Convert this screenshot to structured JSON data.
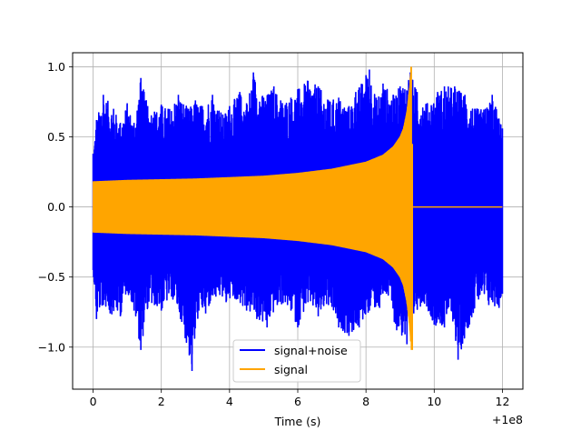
{
  "chart_data": {
    "type": "line",
    "title": "",
    "xlabel": "Time (s)",
    "ylabel": "",
    "x_offset_label": "+1e8",
    "xlim": [
      -0.6,
      12.6
    ],
    "ylim": [
      -1.3,
      1.1
    ],
    "x_ticks": [
      0,
      2,
      4,
      6,
      8,
      10,
      12
    ],
    "x_tick_labels": [
      "0",
      "2",
      "4",
      "6",
      "8",
      "10",
      "12"
    ],
    "y_ticks": [
      1.0,
      0.5,
      0.0,
      -0.5,
      -1.0
    ],
    "y_tick_labels": [
      "1.0",
      "0.5",
      "0.0",
      "−0.5",
      "−1.0"
    ],
    "grid": true,
    "legend_position": "bottom-center",
    "series": [
      {
        "name": "signal+noise",
        "color": "#0000ff",
        "x_range": [
          0,
          12
        ],
        "upper_envelope": [
          [
            0,
            0.38
          ],
          [
            0.1,
            0.62
          ],
          [
            0.3,
            0.8
          ],
          [
            0.6,
            0.7
          ],
          [
            0.8,
            0.6
          ],
          [
            1.0,
            0.74
          ],
          [
            1.2,
            0.6
          ],
          [
            1.4,
            0.92
          ],
          [
            1.6,
            0.72
          ],
          [
            1.8,
            0.68
          ],
          [
            2.0,
            0.73
          ],
          [
            2.2,
            0.7
          ],
          [
            2.5,
            0.8
          ],
          [
            2.8,
            0.7
          ],
          [
            3.0,
            0.76
          ],
          [
            3.2,
            0.72
          ],
          [
            3.5,
            0.8
          ],
          [
            3.8,
            0.66
          ],
          [
            4.0,
            0.72
          ],
          [
            4.3,
            0.82
          ],
          [
            4.5,
            0.74
          ],
          [
            4.7,
            0.96
          ],
          [
            5.0,
            0.78
          ],
          [
            5.3,
            0.86
          ],
          [
            5.5,
            0.76
          ],
          [
            5.8,
            0.78
          ],
          [
            6.0,
            0.84
          ],
          [
            6.3,
            0.9
          ],
          [
            6.6,
            0.86
          ],
          [
            6.9,
            0.76
          ],
          [
            7.2,
            0.78
          ],
          [
            7.5,
            0.72
          ],
          [
            7.7,
            0.82
          ],
          [
            8.0,
            0.94
          ],
          [
            8.1,
            0.98
          ],
          [
            8.3,
            0.78
          ],
          [
            8.5,
            0.88
          ],
          [
            8.8,
            0.8
          ],
          [
            9.0,
            0.86
          ],
          [
            9.3,
            0.96
          ],
          [
            9.5,
            0.82
          ],
          [
            9.8,
            0.74
          ],
          [
            10.1,
            0.82
          ],
          [
            10.3,
            0.86
          ],
          [
            10.6,
            0.86
          ],
          [
            10.9,
            0.8
          ],
          [
            11.2,
            0.7
          ],
          [
            11.5,
            0.7
          ],
          [
            11.7,
            0.8
          ],
          [
            12.0,
            0.56
          ]
        ],
        "lower_envelope": [
          [
            0,
            -0.45
          ],
          [
            0.1,
            -0.8
          ],
          [
            0.3,
            -0.7
          ],
          [
            0.5,
            -0.76
          ],
          [
            0.8,
            -0.78
          ],
          [
            1.0,
            -0.6
          ],
          [
            1.2,
            -0.74
          ],
          [
            1.4,
            -1.02
          ],
          [
            1.6,
            -0.72
          ],
          [
            1.8,
            -0.7
          ],
          [
            2.0,
            -0.74
          ],
          [
            2.3,
            -0.64
          ],
          [
            2.6,
            -0.82
          ],
          [
            2.9,
            -1.17
          ],
          [
            3.1,
            -0.74
          ],
          [
            3.3,
            -0.76
          ],
          [
            3.6,
            -0.64
          ],
          [
            3.9,
            -0.68
          ],
          [
            4.2,
            -0.66
          ],
          [
            4.5,
            -0.74
          ],
          [
            4.8,
            -0.8
          ],
          [
            5.1,
            -0.86
          ],
          [
            5.4,
            -0.7
          ],
          [
            5.7,
            -0.7
          ],
          [
            6.0,
            -0.86
          ],
          [
            6.3,
            -0.68
          ],
          [
            6.6,
            -0.78
          ],
          [
            6.9,
            -0.7
          ],
          [
            7.2,
            -0.86
          ],
          [
            7.5,
            -0.92
          ],
          [
            7.8,
            -0.86
          ],
          [
            8.1,
            -0.74
          ],
          [
            8.4,
            -0.72
          ],
          [
            8.6,
            -0.62
          ],
          [
            8.9,
            -0.88
          ],
          [
            9.2,
            -0.98
          ],
          [
            9.4,
            -0.76
          ],
          [
            9.7,
            -0.68
          ],
          [
            10.0,
            -0.84
          ],
          [
            10.3,
            -0.86
          ],
          [
            10.5,
            -0.74
          ],
          [
            10.7,
            -1.09
          ],
          [
            11.0,
            -0.86
          ],
          [
            11.3,
            -0.66
          ],
          [
            11.6,
            -0.7
          ],
          [
            11.9,
            -0.72
          ],
          [
            12.0,
            -0.62
          ]
        ]
      },
      {
        "name": "signal",
        "color": "#ffa500",
        "x_range": [
          0,
          12
        ],
        "envelope": [
          [
            0,
            0.18
          ],
          [
            1,
            0.19
          ],
          [
            2,
            0.195
          ],
          [
            3,
            0.2
          ],
          [
            4,
            0.21
          ],
          [
            5,
            0.22
          ],
          [
            6,
            0.24
          ],
          [
            7,
            0.27
          ],
          [
            8,
            0.32
          ],
          [
            8.5,
            0.37
          ],
          [
            8.8,
            0.43
          ],
          [
            9.0,
            0.5
          ],
          [
            9.1,
            0.56
          ],
          [
            9.2,
            0.68
          ],
          [
            9.28,
            0.85
          ],
          [
            9.32,
            1.0
          ],
          [
            9.35,
            0.0
          ],
          [
            12.0,
            0.0
          ]
        ],
        "peak_min": -1.02,
        "merger_time": 9.33
      }
    ]
  }
}
